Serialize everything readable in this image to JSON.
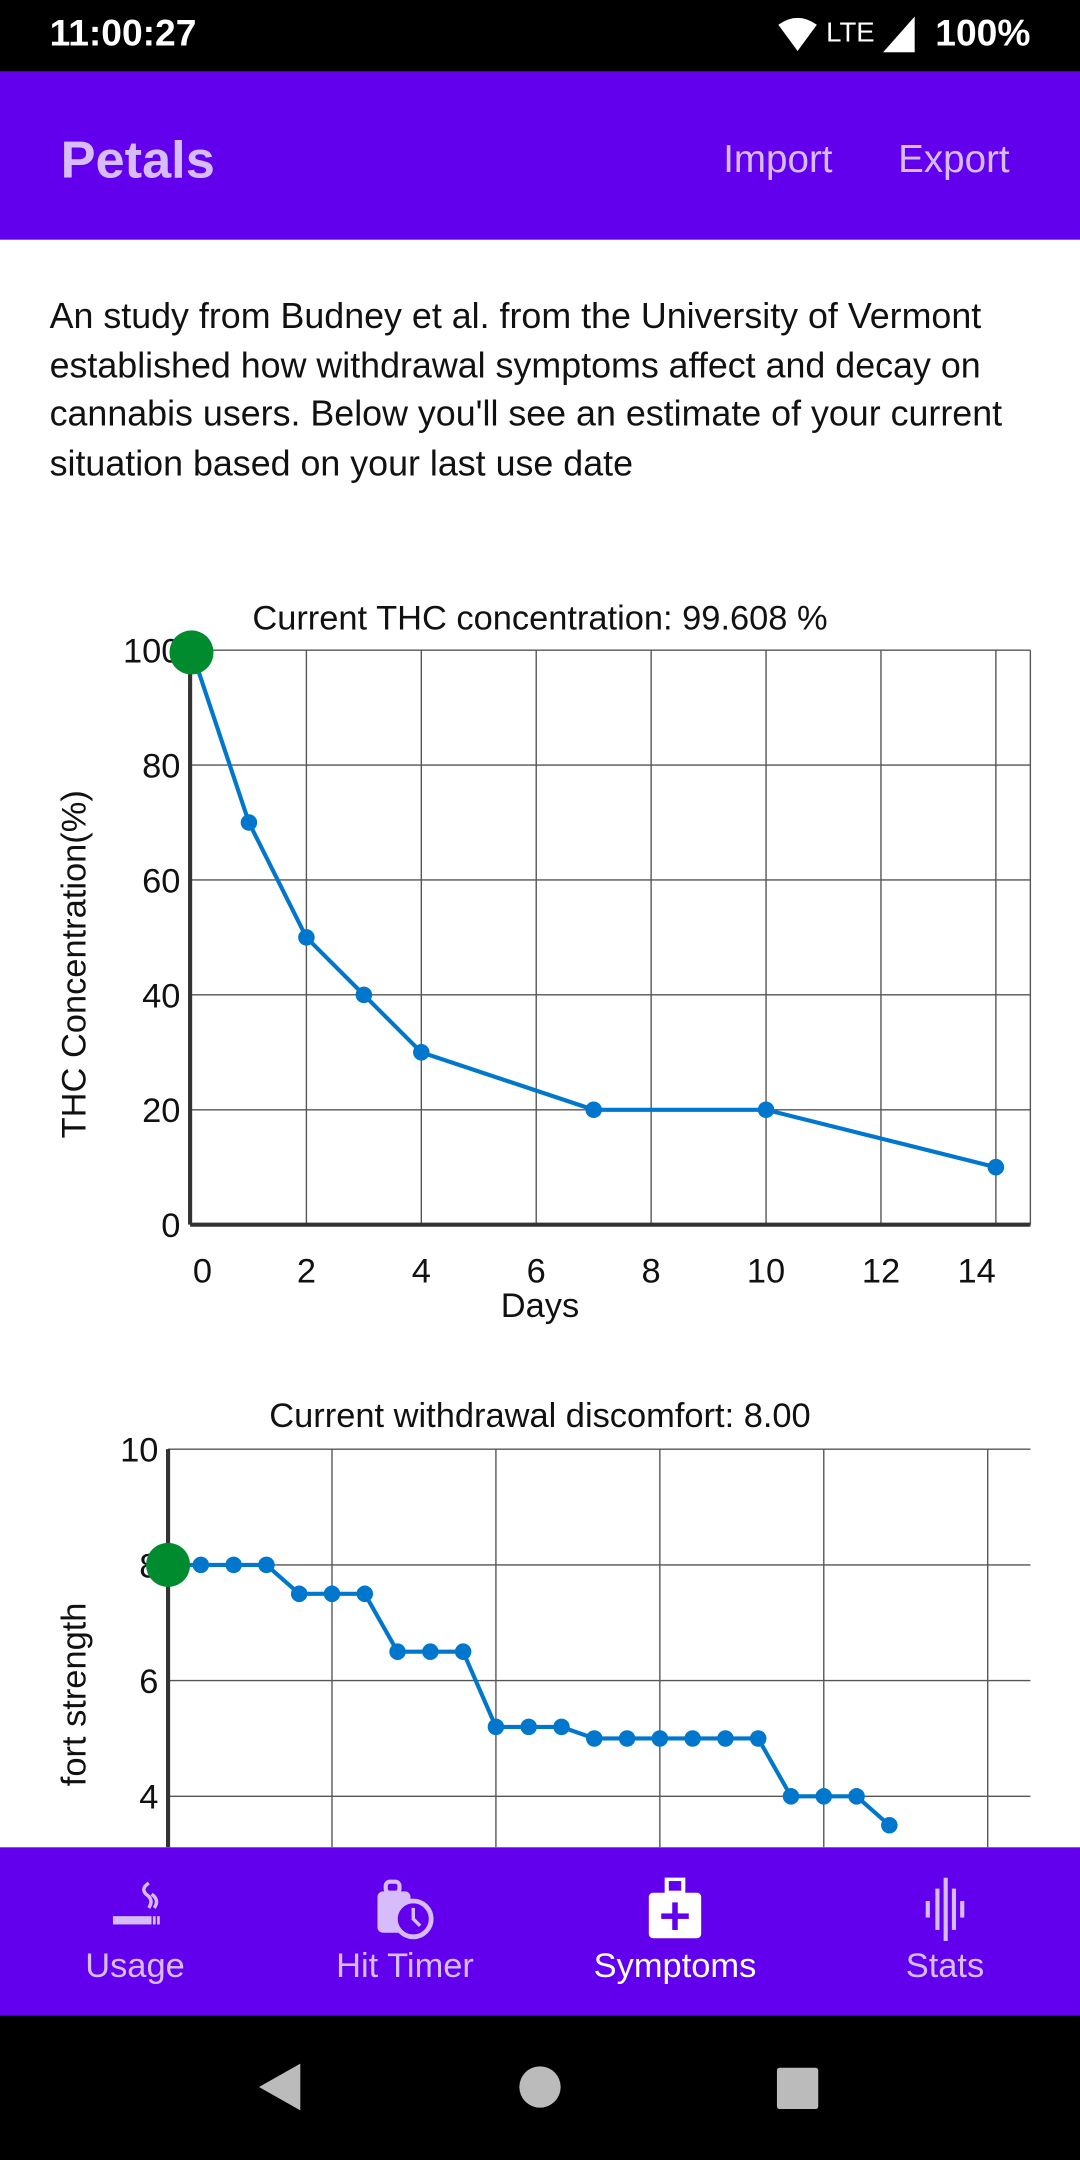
{
  "status_bar": {
    "time": "11:00:27",
    "network": "LTE",
    "battery": "100%"
  },
  "app_bar": {
    "title": "Petals",
    "actions": [
      "Import",
      "Export"
    ]
  },
  "intro_text": "An study from Budney et al. from the University of Vermont established how withdrawal symptoms affect and decay on cannabis users. Below you'll see an estimate of your current situation based on your last use date",
  "colors": {
    "primary": "#6200EE",
    "on_primary_muted": "#D7BCFB",
    "line": "#0077CC",
    "current_marker": "#008C2E"
  },
  "chart_data": [
    {
      "type": "line",
      "title": "Current THC concentration: 99.608 %",
      "xlabel": "Days",
      "ylabel": "THC Concentration(%)",
      "x": [
        0,
        1,
        2,
        3,
        4,
        7,
        10,
        14
      ],
      "y": [
        100,
        70,
        50,
        40,
        30,
        20,
        20,
        10
      ],
      "current_point": {
        "x": 0,
        "y": 99.608
      },
      "xlim": [
        0,
        14.6
      ],
      "ylim": [
        0,
        100
      ],
      "xticks": [
        0,
        2,
        4,
        6,
        8,
        10,
        12,
        14
      ],
      "yticks": [
        0,
        20,
        40,
        60,
        80,
        100
      ],
      "grid": true
    },
    {
      "type": "line",
      "title": "Current withdrawal discomfort: 8.00",
      "xlabel": "",
      "ylabel": "fort strength",
      "x": [
        0,
        1,
        2,
        3,
        4,
        5,
        6,
        7,
        8,
        9,
        10,
        11,
        12,
        13,
        14,
        15,
        16,
        17,
        18,
        19,
        20,
        21,
        22
      ],
      "y": [
        8,
        8,
        8,
        8,
        7.5,
        7.5,
        7.5,
        6.5,
        6.5,
        6.5,
        5.2,
        5.2,
        5.2,
        5,
        5,
        5,
        5,
        5,
        5,
        4,
        4,
        4,
        3.5
      ],
      "current_point": {
        "x": 0,
        "y": 8.0
      },
      "xgrid_step": 5,
      "yticks": [
        4,
        6,
        8,
        10
      ],
      "ylim_top": 10,
      "grid": true
    }
  ],
  "bottom_nav": [
    {
      "label": "Usage",
      "icon": "smoking-icon",
      "active": false
    },
    {
      "label": "Hit Timer",
      "icon": "timer-bag-icon",
      "active": false
    },
    {
      "label": "Symptoms",
      "icon": "medical-bag-icon",
      "active": true
    },
    {
      "label": "Stats",
      "icon": "equalizer-icon",
      "active": false
    }
  ]
}
